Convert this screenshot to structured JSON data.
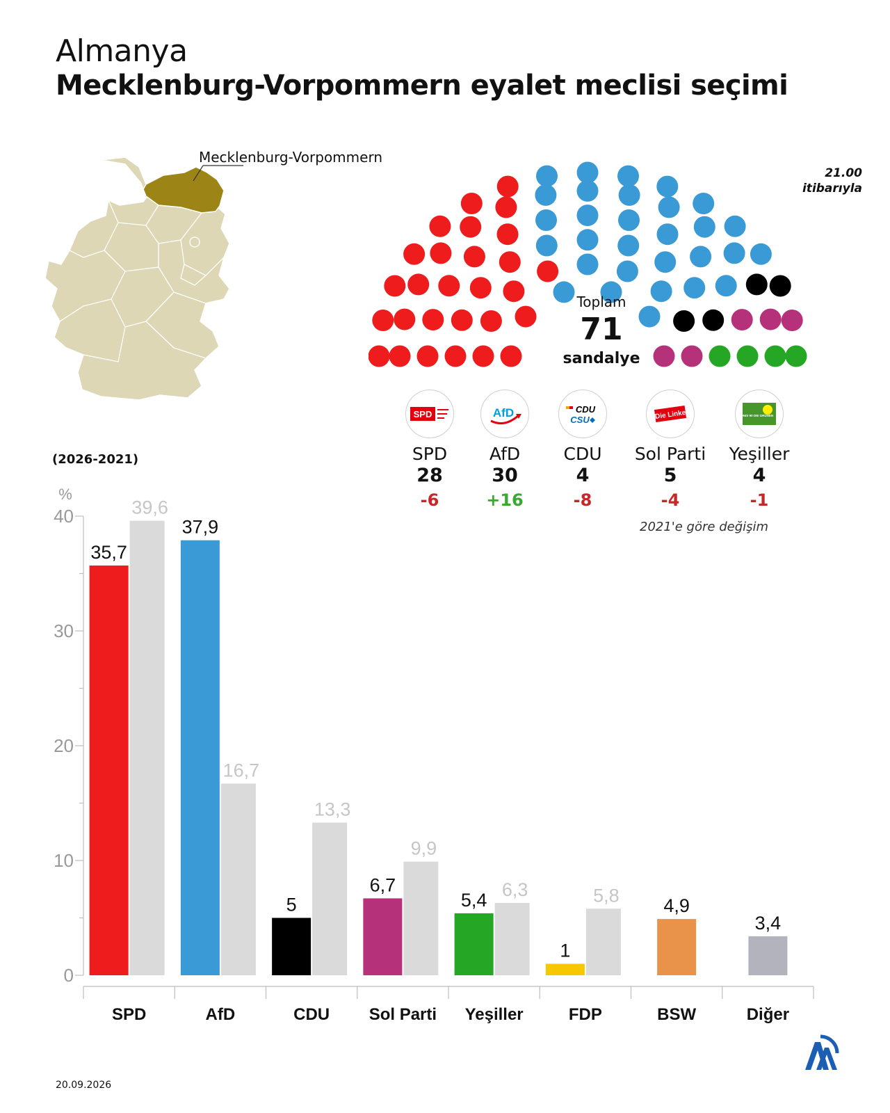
{
  "header": {
    "supertitle": "Almanya",
    "title": "Mecklenburg-Vorpommern eyalet meclisi seçimi"
  },
  "map": {
    "highlight_label": "Mecklenburg-Vorpommern",
    "base_color": "#ddd7b5",
    "highlight_color": "#9c8416"
  },
  "time_note": [
    "21.00",
    "itibarıyla"
  ],
  "seats": {
    "total_label": "Toplam",
    "total": "71",
    "unit": "sandalye",
    "change_note": "2021'e göre değişim",
    "parties": [
      {
        "name": "SPD",
        "seats": 28,
        "change": "-6",
        "color": "#ee1c1c",
        "logo": "SPD",
        "logo_icon": "spd-logo-icon"
      },
      {
        "name": "AfD",
        "seats": 30,
        "change": "+16",
        "color": "#3a9ad6",
        "logo": "AfD",
        "logo_icon": "afd-logo-icon"
      },
      {
        "name": "CDU",
        "seats": 4,
        "change": "-8",
        "color": "#000000",
        "logo": "CDU CSU",
        "logo_icon": "cdu-csu-logo-icon"
      },
      {
        "name": "Sol Parti",
        "seats": 5,
        "change": "-4",
        "color": "#b5317a",
        "logo": "Die Linke",
        "logo_icon": "die-linke-logo-icon"
      },
      {
        "name": "Yeşiller",
        "seats": 4,
        "change": "-1",
        "color": "#25a725",
        "logo": "BÜNDNIS 90 DIE GRÜNEN",
        "logo_icon": "gruene-logo-icon"
      }
    ]
  },
  "period_label": "(2026-2021)",
  "chart_data": {
    "type": "bar",
    "ylabel": "%",
    "ylim": [
      0,
      40
    ],
    "yticks": [
      0,
      10,
      20,
      30,
      40
    ],
    "categories": [
      "SPD",
      "AfD",
      "CDU",
      "Sol Parti",
      "Yeşiller",
      "FDP",
      "BSW",
      "Diğer"
    ],
    "series": [
      {
        "values": [
          35.7,
          37.9,
          5,
          6.7,
          5.4,
          1,
          4.9,
          3.4
        ],
        "labels": [
          "35,7",
          "37,9",
          "5",
          "6,7",
          "5,4",
          "1",
          "4,9",
          "3,4"
        ],
        "colors": [
          "#ee1c1c",
          "#3a9ad6",
          "#000000",
          "#b5317a",
          "#25a725",
          "#f7c800",
          "#e8924a",
          "#b3b3bd"
        ]
      },
      {
        "values": [
          39.6,
          16.7,
          13.3,
          9.9,
          6.3,
          5.8,
          null,
          null
        ],
        "labels": [
          "39,6",
          "16,7",
          "13,3",
          "9,9",
          "6,3",
          "5,8",
          "",
          ""
        ],
        "color": "#dadada"
      }
    ]
  },
  "footer": {
    "date": "20.09.2026",
    "logo": "AA"
  }
}
